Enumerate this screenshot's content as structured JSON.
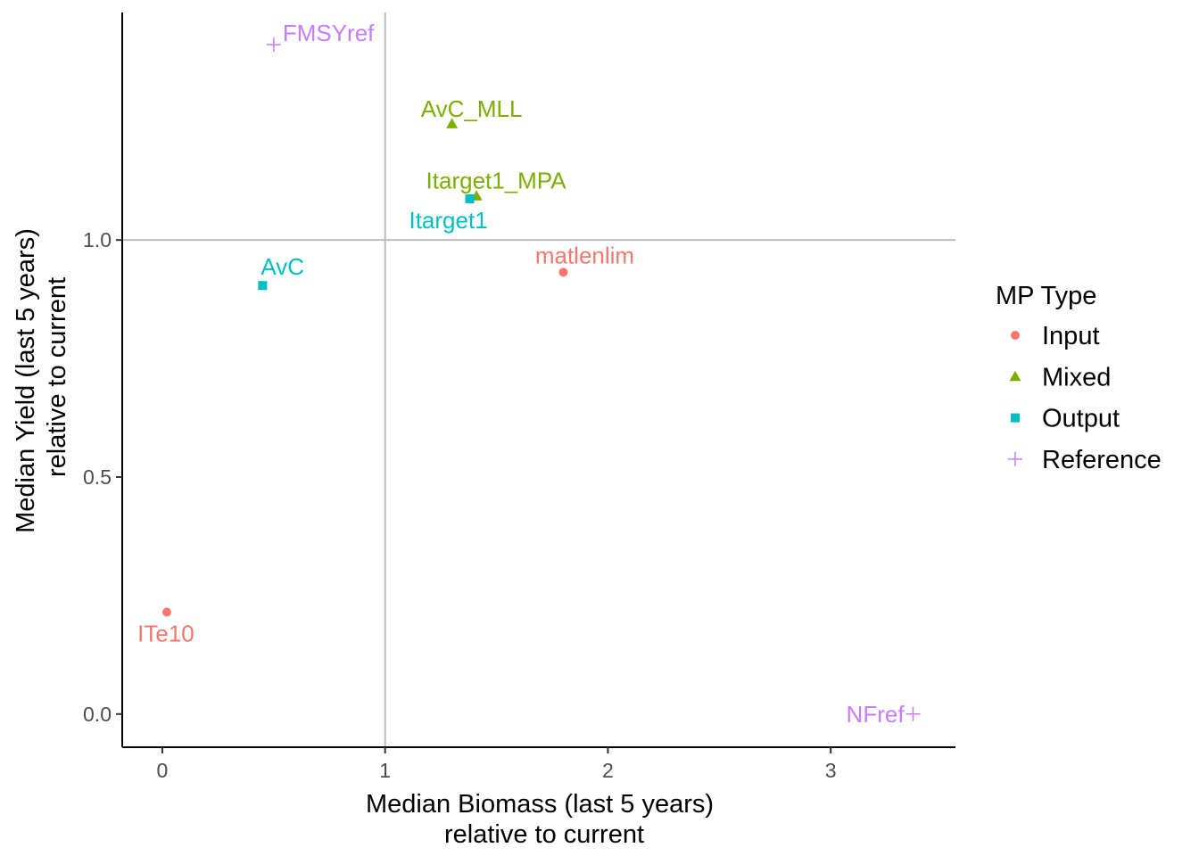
{
  "chart_data": {
    "type": "scatter",
    "title": "",
    "xlabel": [
      "Median Biomass (last 5 years)",
      "relative to current"
    ],
    "ylabel": [
      "Median Yield (last 5 years)",
      "relative to current"
    ],
    "xlim": [
      -0.18,
      3.56
    ],
    "ylim": [
      -0.07,
      1.48
    ],
    "x_ticks": [
      {
        "value": 0,
        "label": "0"
      },
      {
        "value": 1,
        "label": "1"
      },
      {
        "value": 2,
        "label": "2"
      },
      {
        "value": 3,
        "label": "3"
      }
    ],
    "y_ticks": [
      {
        "value": 0.0,
        "label": "0.0"
      },
      {
        "value": 0.5,
        "label": "0.5"
      },
      {
        "value": 1.0,
        "label": "1.0"
      }
    ],
    "reference_lines": {
      "x": 1,
      "y": 1
    },
    "grid": false,
    "legend": {
      "title": "MP Type",
      "placement": "right",
      "entries": [
        {
          "name": "Input",
          "shape": "circle",
          "color": "#F8766D"
        },
        {
          "name": "Mixed",
          "shape": "triangle",
          "color": "#7CAE00"
        },
        {
          "name": "Output",
          "shape": "square",
          "color": "#00BFC4"
        },
        {
          "name": "Reference",
          "shape": "plus",
          "color": "#C77CFF"
        }
      ]
    },
    "points": [
      {
        "label": "FMSYref",
        "type": "Reference",
        "x": 0.5,
        "y": 1.412
      },
      {
        "label": "AvC_MLL",
        "type": "Mixed",
        "x": 1.3,
        "y": 1.245
      },
      {
        "label": "Itarget1_MPA",
        "type": "Mixed",
        "x": 1.41,
        "y": 1.093
      },
      {
        "label": "Itarget1",
        "type": "Output",
        "x": 1.38,
        "y": 1.087
      },
      {
        "label": "matlenlim",
        "type": "Input",
        "x": 1.8,
        "y": 0.932
      },
      {
        "label": "AvC",
        "type": "Output",
        "x": 0.45,
        "y": 0.904
      },
      {
        "label": "ITe10",
        "type": "Input",
        "x": 0.02,
        "y": 0.215
      },
      {
        "label": "NFref",
        "type": "Reference",
        "x": 3.37,
        "y": 0.0
      }
    ]
  }
}
